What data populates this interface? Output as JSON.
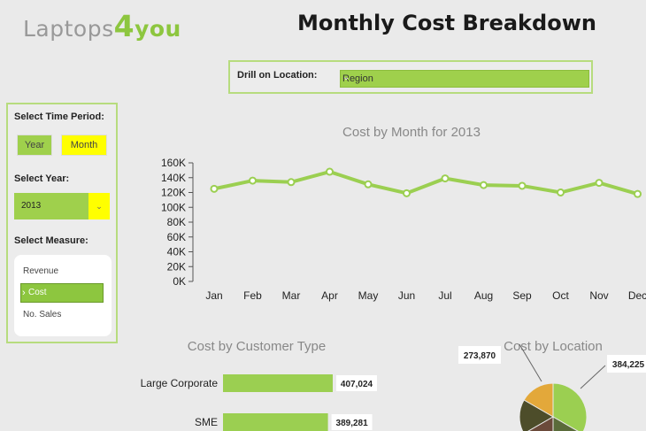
{
  "header": {
    "logo_part1": "Laptops",
    "logo_part2": "4",
    "logo_part3": "you",
    "title": "Monthly Cost Breakdown"
  },
  "drill": {
    "label": "Drill on Location:",
    "value": "Region"
  },
  "sidebar": {
    "time_period_label": "Select Time Period:",
    "year_button": "Year",
    "month_button": "Month",
    "year_label": "Select Year:",
    "year_value": "2013",
    "measure_label": "Select Measure:",
    "measures": [
      "Revenue",
      "Cost",
      "No. Sales"
    ],
    "selected_measure": "Cost"
  },
  "colors": {
    "accent": "#8dc63f",
    "highlight": "#ffff00",
    "line": "#9bcf51"
  },
  "chart_data": [
    {
      "type": "line",
      "title": "Cost by Month for 2013",
      "categories": [
        "Jan",
        "Feb",
        "Mar",
        "Apr",
        "May",
        "Jun",
        "Jul",
        "Aug",
        "Sep",
        "Oct",
        "Nov",
        "Dec"
      ],
      "values": [
        125000,
        136000,
        134000,
        148000,
        131000,
        119000,
        139000,
        130000,
        129000,
        120000,
        133000,
        118000
      ],
      "yticks": [
        "0K",
        "20K",
        "40K",
        "60K",
        "80K",
        "100K",
        "120K",
        "140K",
        "160K"
      ],
      "ylim": [
        0,
        160000
      ],
      "grid": false
    },
    {
      "type": "bar",
      "title": "Cost by Customer Type",
      "categories": [
        "Large Corporate",
        "SME"
      ],
      "values": [
        407024,
        389281
      ],
      "value_labels": [
        "407,024",
        "389,281"
      ]
    },
    {
      "type": "pie",
      "title": "Cost by Location",
      "value_labels": [
        "273,870",
        "384,225"
      ],
      "slice_colors": [
        "#e3a83a",
        "#9bcf51",
        "#4d4d2a",
        "#5a6b3a",
        "#6b4a3a"
      ]
    }
  ]
}
